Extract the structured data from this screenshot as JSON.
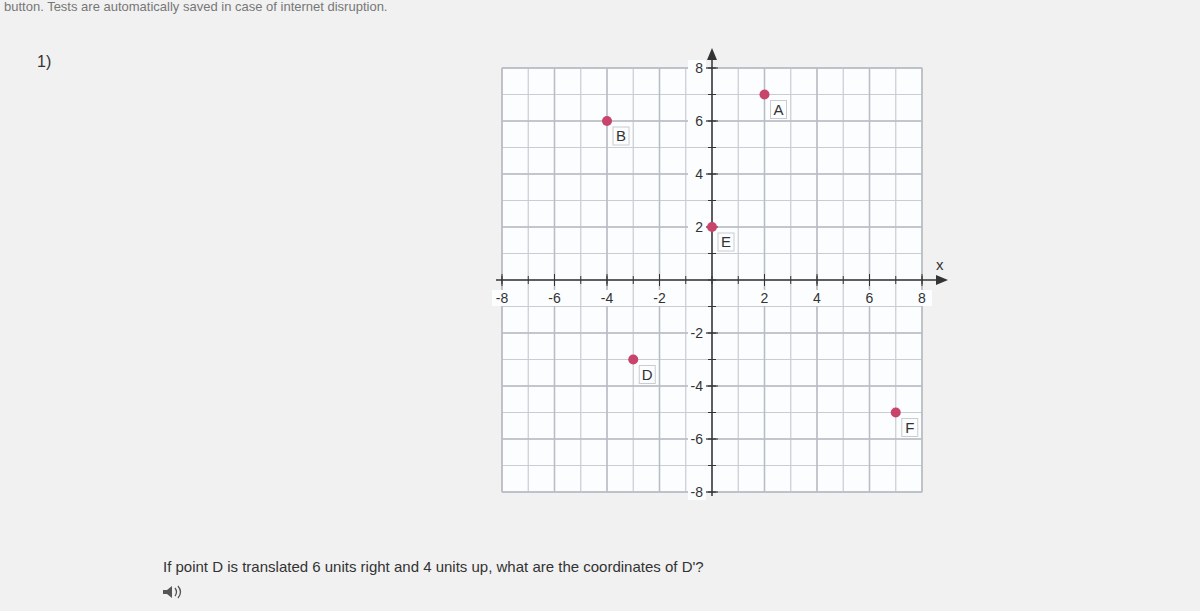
{
  "header": {
    "notice": "button. Tests are automatically saved in case of internet disruption.",
    "number": "1)",
    "question": "If point D is translated 6 units right and 4 units up, what are the coordinates of D'?"
  },
  "chart_data": {
    "type": "scatter",
    "x": [
      2,
      -4,
      -3,
      0,
      7
    ],
    "values": [
      7,
      6,
      -3,
      2,
      -5
    ],
    "point_labels": [
      "A",
      "B",
      "D",
      "E",
      "F"
    ],
    "color": "#c9446b",
    "marker": "circle",
    "xlim": [
      -8,
      8
    ],
    "ylim": [
      -8,
      8
    ],
    "xticks": [
      -8,
      -6,
      -4,
      -2,
      2,
      4,
      6,
      8
    ],
    "yticks": [
      -8,
      -6,
      -4,
      -2,
      2,
      4,
      6,
      8
    ],
    "x_label": "x",
    "grid": true
  }
}
